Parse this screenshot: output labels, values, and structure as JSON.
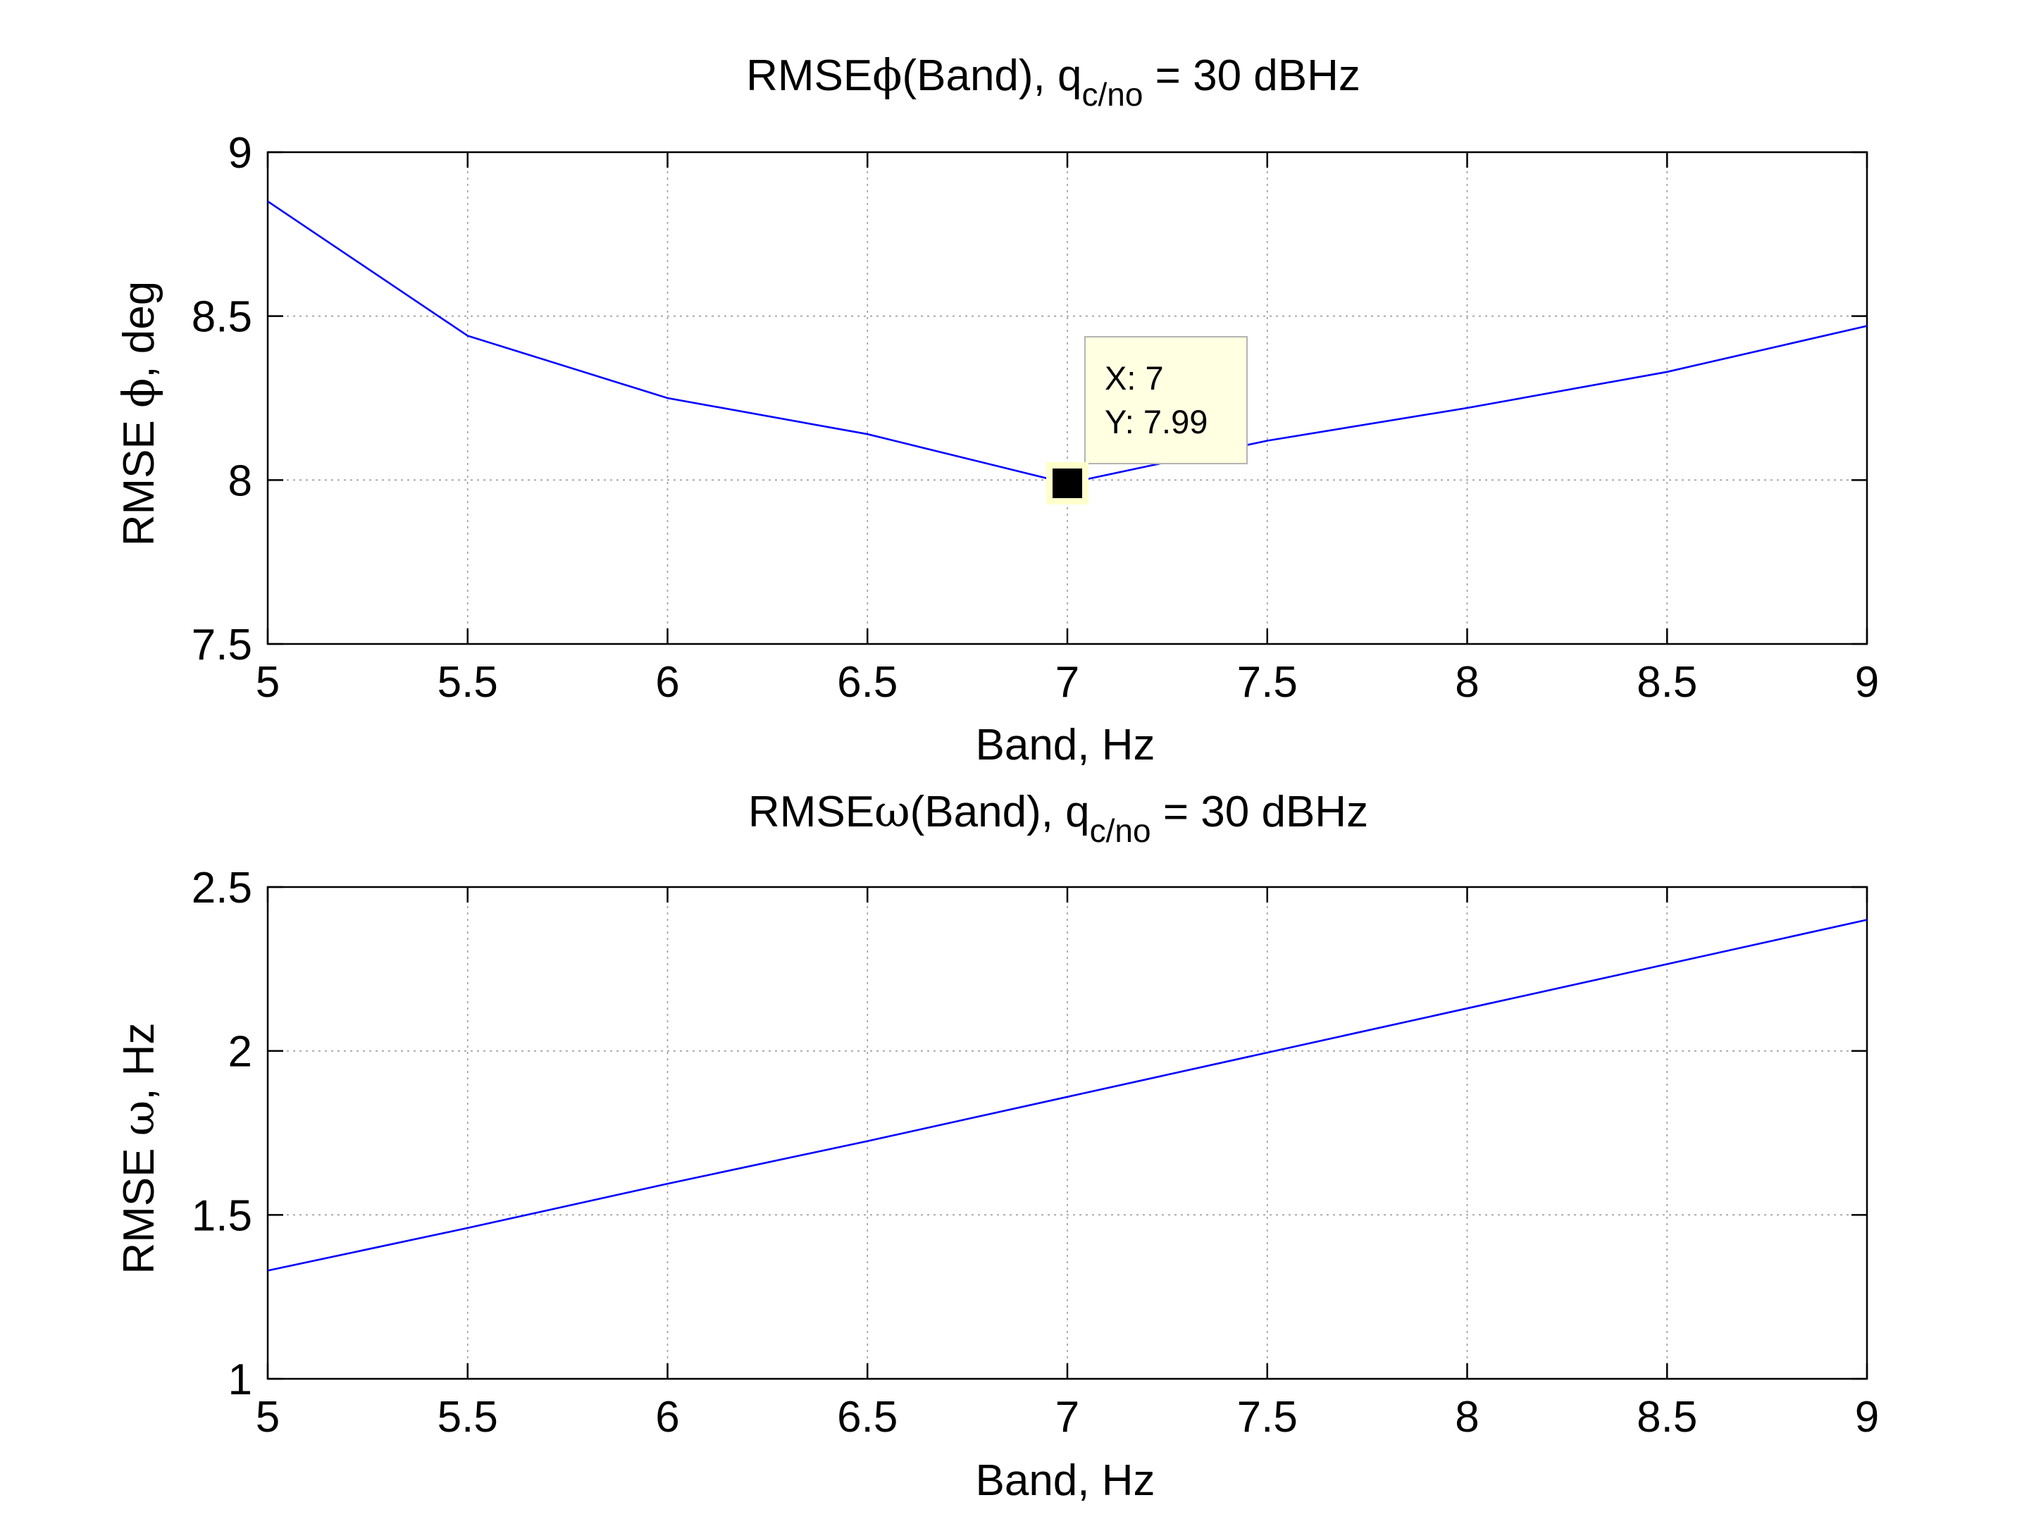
{
  "chart_data": [
    {
      "type": "line",
      "title": {
        "prefix": "RMSE",
        "symbol": "ϕ",
        "middle": "(Band), q",
        "subscript": "c/no",
        "suffix": " = 30 dBHz"
      },
      "xlabel": "Band, Hz",
      "ylabel": {
        "prefix": "RMSE ",
        "symbol": "ϕ",
        "suffix": ", deg"
      },
      "xlim": [
        5,
        9
      ],
      "ylim": [
        7.5,
        9
      ],
      "xticks": [
        "5",
        "5.5",
        "6",
        "6.5",
        "7",
        "7.5",
        "8",
        "8.5",
        "9"
      ],
      "yticks": [
        "7.5",
        "8",
        "8.5",
        "9"
      ],
      "grid": true,
      "series": [
        {
          "color": "#0000ff",
          "x": [
            5,
            5.5,
            6,
            6.5,
            7,
            7.5,
            8,
            8.5,
            9
          ],
          "y": [
            8.85,
            8.44,
            8.25,
            8.14,
            7.99,
            8.12,
            8.22,
            8.33,
            8.47
          ]
        }
      ],
      "data_tip": {
        "x": 7,
        "y": 7.99,
        "x_text": "X: 7",
        "y_text": "Y: 7.99"
      }
    },
    {
      "type": "line",
      "title": {
        "prefix": "RMSE",
        "symbol": "ω",
        "middle": "(Band), q",
        "subscript": "c/no",
        "suffix": " = 30 dBHz"
      },
      "xlabel": "Band, Hz",
      "ylabel": {
        "prefix": "RMSE ",
        "symbol": "ω",
        "suffix": ", Hz"
      },
      "xlim": [
        5,
        9
      ],
      "ylim": [
        1,
        2.5
      ],
      "xticks": [
        "5",
        "5.5",
        "6",
        "6.5",
        "7",
        "7.5",
        "8",
        "8.5",
        "9"
      ],
      "yticks": [
        "1",
        "1.5",
        "2",
        "2.5"
      ],
      "grid": true,
      "series": [
        {
          "color": "#0000ff",
          "x": [
            5,
            5.5,
            6,
            6.5,
            7,
            7.5,
            8,
            8.5,
            9
          ],
          "y": [
            1.33,
            1.46,
            1.595,
            1.725,
            1.86,
            1.995,
            2.13,
            2.265,
            2.4
          ]
        }
      ]
    }
  ]
}
